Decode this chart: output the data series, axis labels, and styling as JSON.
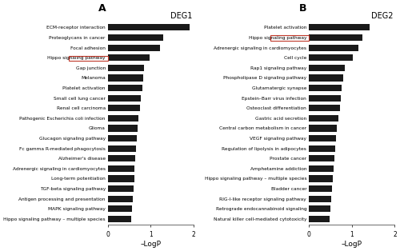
{
  "deg1_labels": [
    "ECM-receptor interaction",
    "Proteoglycans in cancer",
    "Focal adhesion",
    "Hippo signaling pathway",
    "Gap junction",
    "Melanoma",
    "Platelet activation",
    "Small cell lung cancer",
    "Renal cell carcinoma",
    "Pathogenic Escherichia coli infection",
    "Glioma",
    "Glucagon signaling pathway",
    "Fc gamma R-mediated phagocytosis",
    "Alzheimer's disease",
    "Adrenergic signaling in cardiomyocytes",
    "Long-term potentiation",
    "TGF-beta signaling pathway",
    "Antigen processing and presentation",
    "MAPK signaling pathway",
    "Hippo signaling pathway – multiple species"
  ],
  "deg1_values": [
    1.9,
    1.3,
    1.22,
    0.98,
    0.84,
    0.82,
    0.8,
    0.78,
    0.76,
    0.72,
    0.7,
    0.68,
    0.66,
    0.64,
    0.63,
    0.62,
    0.6,
    0.58,
    0.57,
    0.55
  ],
  "deg1_highlight": 3,
  "deg2_labels": [
    "Platelet activation",
    "Hippo signaling pathway",
    "Adrenergic signaling in cardiomyocytes",
    "Cell cycle",
    "Rap1 signaling pathway",
    "Phospholipase D signaling pathway",
    "Glutamatergic synapse",
    "Epstein–Barr virus infection",
    "Osteoclast differentiation",
    "Gastric acid secretion",
    "Central carbon metabolism in cancer",
    "VEGF signaling pathway",
    "Regulation of lipolysis in adipocytes",
    "Prostate cancer",
    "Amphetamine addiction",
    "Hippo signaling pathway – multiple species",
    "Bladder cancer",
    "RIG-I-like receptor signaling pathway",
    "Retrograde endocannabinoid signaling",
    "Natural killer cell-mediated cytotoxicity"
  ],
  "deg2_values": [
    1.42,
    1.25,
    1.15,
    1.02,
    0.84,
    0.8,
    0.76,
    0.74,
    0.72,
    0.68,
    0.66,
    0.64,
    0.62,
    0.6,
    0.58,
    0.56,
    0.54,
    0.52,
    0.5,
    0.48
  ],
  "deg2_highlight": 1,
  "bar_color": "#1a1a1a",
  "highlight_box_color": "#c0392b",
  "xlabel": "–LogP",
  "xlim": [
    0,
    2
  ],
  "xticks": [
    0,
    1,
    2
  ],
  "background_color": "#ffffff",
  "title1": "DEG1",
  "title2": "DEG2",
  "label_a": "A",
  "label_b": "B"
}
